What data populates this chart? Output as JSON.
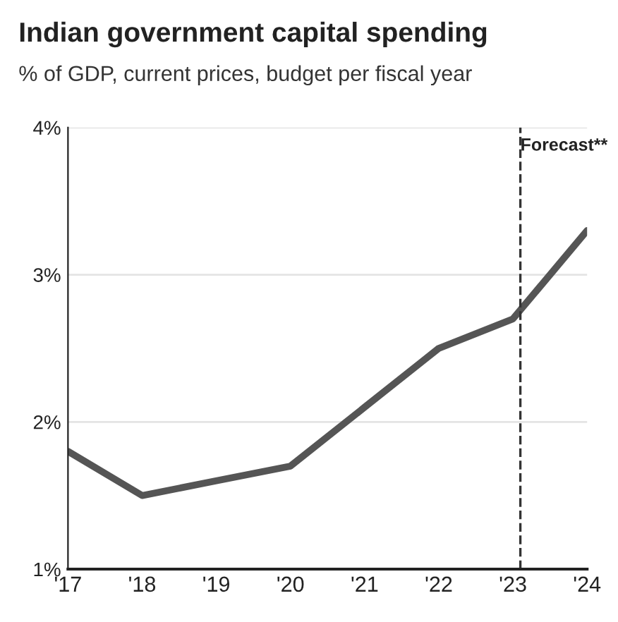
{
  "chart_data": {
    "type": "line",
    "title": "Indian government capital spending",
    "subtitle": "% of GDP, current prices, budget per fiscal year",
    "x": [
      2017,
      2018,
      2019,
      2020,
      2021,
      2022,
      2023,
      2024
    ],
    "series": [
      {
        "color": "#555555",
        "values": [
          1.8,
          1.5,
          1.6,
          1.7,
          2.1,
          2.5,
          2.7,
          3.3
        ]
      }
    ],
    "xlim": [
      2017,
      2024
    ],
    "xticks": [
      {
        "value": 2017,
        "label": "'17"
      },
      {
        "value": 2018,
        "label": "'18"
      },
      {
        "value": 2019,
        "label": "'19"
      },
      {
        "value": 2020,
        "label": "'20"
      },
      {
        "value": 2021,
        "label": "'21"
      },
      {
        "value": 2022,
        "label": "'22"
      },
      {
        "value": 2023,
        "label": "'23"
      },
      {
        "value": 2024,
        "label": "'24"
      }
    ],
    "ylim": [
      1,
      4
    ],
    "yticks": [
      {
        "value": 1,
        "label": "1%"
      },
      {
        "value": 2,
        "label": "2%"
      },
      {
        "value": 3,
        "label": "3%"
      },
      {
        "value": 4,
        "label": "4%"
      }
    ],
    "grid": "y",
    "line_style": "solid",
    "marker": "none",
    "ref_lines": [
      {
        "axis": "x",
        "value": 2023.1,
        "label": "Forecast**",
        "color": "#333333",
        "line_style": "dashed"
      }
    ]
  }
}
